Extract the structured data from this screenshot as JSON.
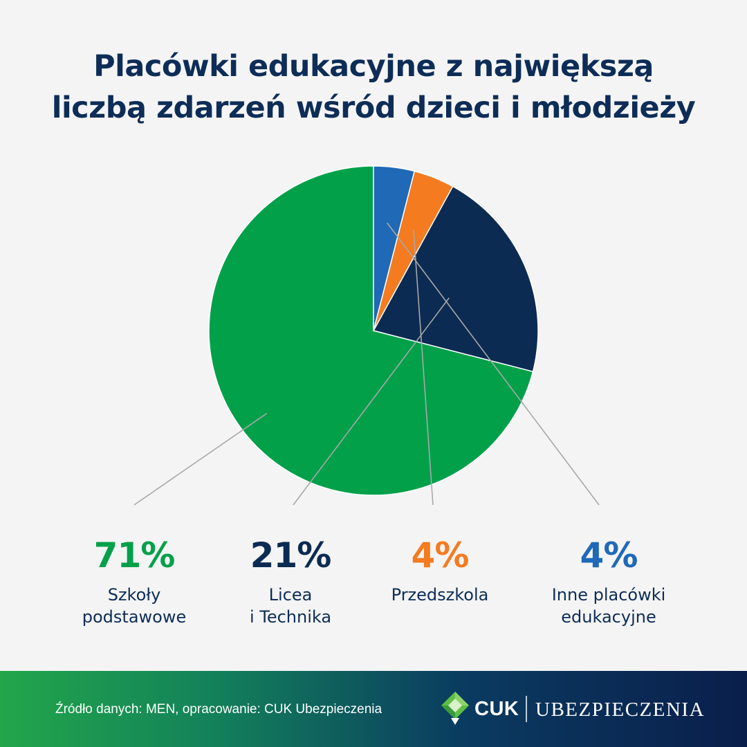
{
  "title": {
    "line1": "Placówki edukacyjne z  największą",
    "line2": "liczbą zdarzeń wśród dzieci i młodzieży"
  },
  "chart_data": {
    "type": "pie",
    "title": "Placówki edukacyjne z  największą liczbą zdarzeń wśród dzieci i młodzieży",
    "slices": [
      {
        "label_lines": [
          "Szkoły",
          "podstawowe"
        ],
        "value": 71,
        "display": "71%",
        "color": "#03a04a"
      },
      {
        "label_lines": [
          "Licea",
          "i Technika"
        ],
        "value": 21,
        "display": "21%",
        "color": "#0c2b52"
      },
      {
        "label_lines": [
          "Przedszkola"
        ],
        "value": 4,
        "display": "4%",
        "color": "#f47b20"
      },
      {
        "label_lines": [
          "Inne placówki",
          "edukacyjne"
        ],
        "value": 4,
        "display": "4%",
        "color": "#1f69b7"
      }
    ],
    "direction": "counterclockwise from 12 o'clock",
    "legend_placement": "bottom"
  },
  "footer": {
    "source": "Źródło danych: MEN, opracowanie: CUK Ubezpieczenia",
    "logo_cuk": "CUK",
    "logo_ubezpieczenia": "UBEZPIECZENIA",
    "logo_icon": "cuk-diamond-icon"
  }
}
